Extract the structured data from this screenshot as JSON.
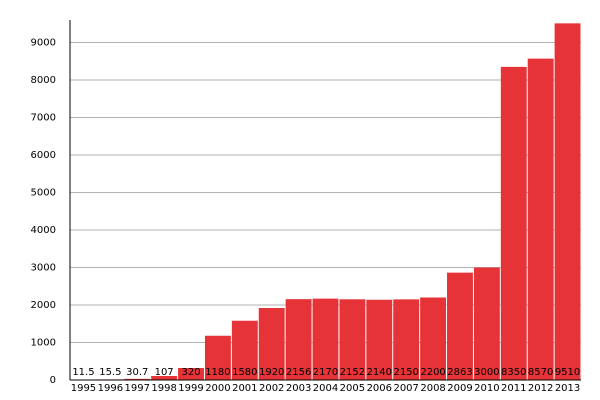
{
  "chart_data": {
    "type": "bar",
    "categories": [
      "1995",
      "1996",
      "1997",
      "1998",
      "1999",
      "2000",
      "2001",
      "2002",
      "2003",
      "2004",
      "2005",
      "2006",
      "2007",
      "2008",
      "2009",
      "2010",
      "2011",
      "2012",
      "2013"
    ],
    "values": [
      11.5,
      15.5,
      30.7,
      107,
      320,
      1180,
      1580,
      1920,
      2156,
      2170,
      2152,
      2140,
      2150,
      2200,
      2863,
      3000,
      8350,
      8570,
      9510
    ],
    "color": "#e63338",
    "ylim": [
      0,
      9600
    ],
    "yticks": [
      0,
      1000,
      2000,
      3000,
      4000,
      5000,
      6000,
      7000,
      8000,
      9000
    ],
    "grid": true
  }
}
